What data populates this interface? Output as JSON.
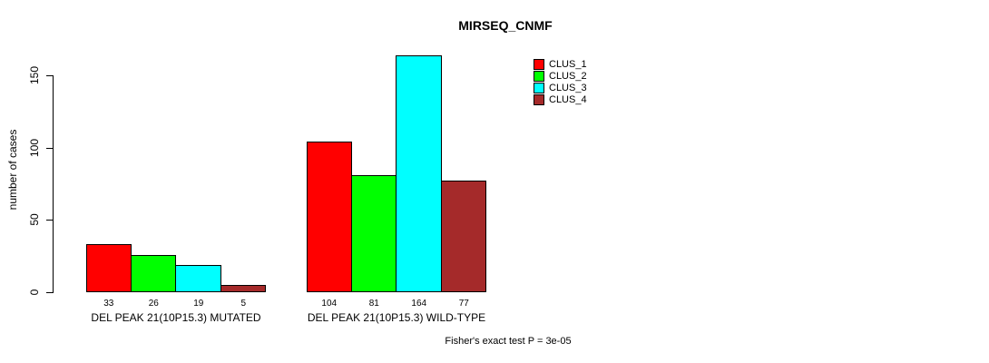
{
  "chart_data": {
    "type": "bar",
    "title": "MIRSEQ_CNMF",
    "xlabel": "",
    "ylabel": "number of cases",
    "ylim": [
      0,
      150
    ],
    "yticks": [
      0,
      50,
      100,
      150
    ],
    "grid": false,
    "legend_position": "top-right-inside",
    "categories": [
      "DEL PEAK 21(10P15.3) MUTATED",
      "DEL PEAK 21(10P15.3) WILD-TYPE"
    ],
    "series": [
      {
        "name": "CLUS_1",
        "color": "#FF0000",
        "values": [
          33,
          104
        ]
      },
      {
        "name": "CLUS_2",
        "color": "#00FF00",
        "values": [
          26,
          81
        ]
      },
      {
        "name": "CLUS_3",
        "color": "#00FFFF",
        "values": [
          19,
          164
        ]
      },
      {
        "name": "CLUS_4",
        "color": "#A52A2A",
        "values": [
          5,
          77
        ]
      }
    ],
    "bar_value_labels": [
      [
        33,
        26,
        19,
        5
      ],
      [
        104,
        81,
        164,
        77
      ]
    ],
    "annotation": "Fisher's exact test P = 3e-05"
  }
}
